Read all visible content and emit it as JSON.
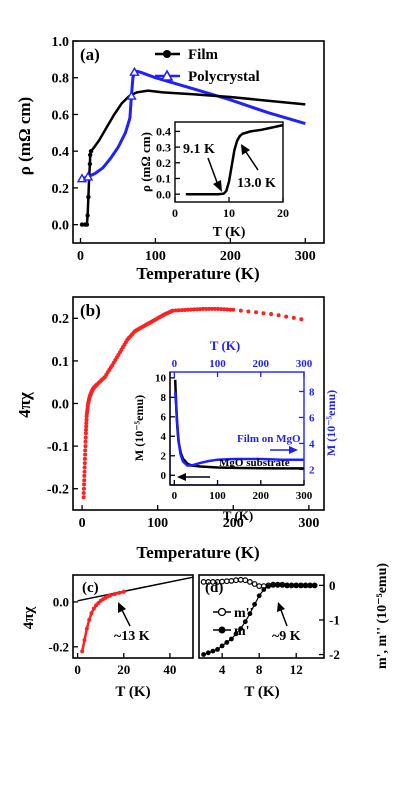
{
  "colors": {
    "black": "#000000",
    "blue": "#1f1fff",
    "red": "#ff2020"
  },
  "chart_data": [
    {
      "type": "line",
      "panel_label": "(a)",
      "xlabel": "Temperature (K)",
      "ylabel": "ρ (mΩ cm)",
      "xlim": [
        -10,
        325
      ],
      "ylim": [
        -0.1,
        1.0
      ],
      "x_ticks": [
        0,
        100,
        200,
        300
      ],
      "y_ticks": [
        0.0,
        0.2,
        0.4,
        0.6,
        0.8,
        1.0
      ],
      "legend": "top-right",
      "series": [
        {
          "name": "Film",
          "color": "#000000",
          "marker": "filled-circle",
          "x": [
            2,
            6,
            8.5,
            9.5,
            10.5,
            11.5,
            12.5,
            13,
            14,
            18,
            25,
            35,
            45,
            55,
            65,
            75,
            90,
            110,
            150,
            200,
            250,
            300
          ],
          "y": [
            0.0,
            0.0,
            0.0,
            0.05,
            0.15,
            0.25,
            0.33,
            0.38,
            0.4,
            0.42,
            0.46,
            0.53,
            0.6,
            0.66,
            0.7,
            0.72,
            0.73,
            0.72,
            0.71,
            0.695,
            0.675,
            0.655
          ]
        },
        {
          "name": "Polycrystal",
          "color": "#1f1fff",
          "marker": "open-triangle",
          "x": [
            2,
            10,
            20,
            30,
            40,
            50,
            60,
            66,
            68,
            70,
            72,
            75,
            80,
            100,
            150,
            200,
            250,
            300
          ],
          "y": [
            0.25,
            0.26,
            0.28,
            0.31,
            0.36,
            0.42,
            0.5,
            0.58,
            0.7,
            0.8,
            0.83,
            0.835,
            0.83,
            0.8,
            0.74,
            0.68,
            0.61,
            0.55
          ]
        }
      ],
      "inset": {
        "xlabel": "T (K)",
        "ylabel": "ρ (mΩ cm)",
        "xlim": [
          0,
          20
        ],
        "ylim": [
          -0.05,
          0.46
        ],
        "x_ticks": [
          0,
          10,
          20
        ],
        "y_ticks": [
          0.0,
          0.1,
          0.2,
          0.3,
          0.4
        ],
        "annotations": [
          "9.1 K",
          "13.0 K"
        ],
        "series": [
          {
            "name": "Film",
            "color": "#000000",
            "x": [
              2,
              4,
              6,
              8,
              9,
              9.5,
              10,
              10.5,
              11,
              11.5,
              12,
              12.5,
              13,
              14,
              16,
              18,
              20
            ],
            "y": [
              0.0,
              0.0,
              0.0,
              0.0,
              0.003,
              0.02,
              0.08,
              0.18,
              0.28,
              0.34,
              0.37,
              0.385,
              0.39,
              0.4,
              0.41,
              0.425,
              0.44
            ]
          }
        ]
      }
    },
    {
      "type": "scatter",
      "panel_label": "(b)",
      "xlabel": "Temperature (K)",
      "ylabel": "4πχ",
      "xlim": [
        -12,
        320
      ],
      "ylim": [
        -0.25,
        0.25
      ],
      "x_ticks": [
        0,
        100,
        200,
        300
      ],
      "y_ticks": [
        -0.2,
        -0.1,
        0.0,
        0.1,
        0.2
      ],
      "series": [
        {
          "name": "",
          "color": "#ff2020",
          "x": [
            2,
            3,
            4,
            5,
            6,
            8,
            10,
            12,
            14,
            16,
            20,
            30,
            40,
            50,
            60,
            70,
            80,
            90,
            100,
            110,
            120,
            140,
            160,
            180,
            200,
            250,
            300
          ],
          "y": [
            -0.22,
            -0.17,
            -0.12,
            -0.07,
            -0.03,
            0.0,
            0.015,
            0.025,
            0.033,
            0.038,
            0.045,
            0.062,
            0.09,
            0.12,
            0.15,
            0.17,
            0.18,
            0.19,
            0.2,
            0.21,
            0.218,
            0.22,
            0.222,
            0.222,
            0.22,
            0.21,
            0.195
          ]
        }
      ],
      "inset": {
        "x_bottom_label": "T (K)",
        "x_top_label": "T (K)",
        "y_left_label": "M (10⁻⁵emu)",
        "y_right_label": "M (10⁻⁵emu)",
        "x_ticks": [
          0,
          100,
          200,
          300
        ],
        "y_left_ticks": [
          0,
          2,
          4,
          6,
          8,
          10
        ],
        "y_right_ticks": [
          2,
          4,
          6,
          8
        ],
        "annotations": [
          "Film on MgO",
          "MgO substrate"
        ],
        "series": [
          {
            "name": "MgO substrate",
            "color": "#000000",
            "x": [
              2,
              4,
              6,
              8,
              10,
              15,
              20,
              30,
              40,
              60,
              100,
              150,
              200,
              250,
              300
            ],
            "y": [
              9.8,
              7.5,
              5.6,
              4.3,
              3.4,
              2.3,
              1.7,
              1.2,
              1.0,
              0.9,
              0.8,
              0.75,
              0.72,
              0.7,
              0.7
            ]
          },
          {
            "name": "Film on MgO",
            "color": "#1f1fff",
            "x": [
              2,
              4,
              6,
              8,
              10,
              14,
              20,
              30,
              40,
              60,
              80,
              100,
              140,
              200,
              250,
              300
            ],
            "y": [
              8.0,
              7.0,
              6.0,
              5.0,
              4.2,
              3.2,
              2.6,
              2.3,
              2.3,
              2.5,
              2.65,
              2.75,
              2.8,
              2.8,
              2.75,
              2.75
            ]
          }
        ]
      }
    },
    {
      "type": "scatter",
      "panel_label": "(c)",
      "xlabel": "T (K)",
      "ylabel": "4πχ",
      "xlim": [
        -2,
        50
      ],
      "ylim": [
        -0.25,
        0.12
      ],
      "x_ticks": [
        0,
        20,
        40
      ],
      "y_ticks": [
        -0.2,
        0.0
      ],
      "annotations": [
        "~13 K"
      ],
      "series": [
        {
          "name": "",
          "color": "#ff2020",
          "x": [
            2,
            3,
            4,
            5,
            6,
            7,
            8,
            9,
            10,
            11,
            12,
            13,
            14,
            16,
            18,
            20
          ],
          "y": [
            -0.22,
            -0.17,
            -0.12,
            -0.08,
            -0.05,
            -0.03,
            -0.015,
            -0.005,
            0.005,
            0.012,
            0.018,
            0.024,
            0.028,
            0.035,
            0.04,
            0.045
          ]
        },
        {
          "name": "",
          "color": "#000000",
          "style": "line",
          "x": [
            0,
            50
          ],
          "y": [
            0.005,
            0.11
          ]
        }
      ]
    },
    {
      "type": "scatter",
      "panel_label": "(d)",
      "xlabel": "T (K)",
      "ylabel": "m', m'' (10⁻⁵emu)",
      "xlim": [
        1.5,
        15
      ],
      "ylim": [
        -2.1,
        0.3
      ],
      "x_ticks": [
        4,
        8,
        12
      ],
      "y_ticks": [
        -2,
        -1,
        0
      ],
      "annotations": [
        "~9 K"
      ],
      "legend": "left",
      "series": [
        {
          "name": "m''",
          "color": "#000000",
          "marker": "open-circle",
          "x": [
            2,
            2.5,
            3,
            3.5,
            4,
            4.5,
            5,
            5.5,
            6,
            6.5,
            7,
            7.5,
            8,
            8.5,
            9,
            9.5,
            10,
            10.5,
            11,
            11.5,
            12,
            12.5,
            13,
            13.5,
            14
          ],
          "y": [
            0.1,
            0.1,
            0.1,
            0.1,
            0.11,
            0.12,
            0.13,
            0.15,
            0.16,
            0.15,
            0.1,
            0.04,
            -0.02,
            -0.02,
            0.0,
            0.02,
            0.02,
            0.02,
            0.0,
            0.0,
            0.0,
            0.0,
            0.0,
            0.0,
            0.0
          ]
        },
        {
          "name": "m'",
          "color": "#000000",
          "marker": "filled-circle",
          "x": [
            2,
            2.5,
            3,
            3.5,
            4,
            4.5,
            5,
            5.5,
            6,
            6.5,
            7,
            7.5,
            8,
            8.5,
            9,
            9.5,
            10,
            10.5,
            11,
            11.5,
            12,
            12.5,
            13,
            13.5,
            14
          ],
          "y": [
            -2.0,
            -1.95,
            -1.9,
            -1.85,
            -1.75,
            -1.65,
            -1.55,
            -1.4,
            -1.25,
            -1.05,
            -0.82,
            -0.55,
            -0.3,
            -0.12,
            -0.03,
            0.0,
            0.0,
            0.0,
            0.0,
            0.0,
            0.0,
            0.0,
            0.0,
            0.0,
            0.0
          ]
        }
      ]
    }
  ]
}
